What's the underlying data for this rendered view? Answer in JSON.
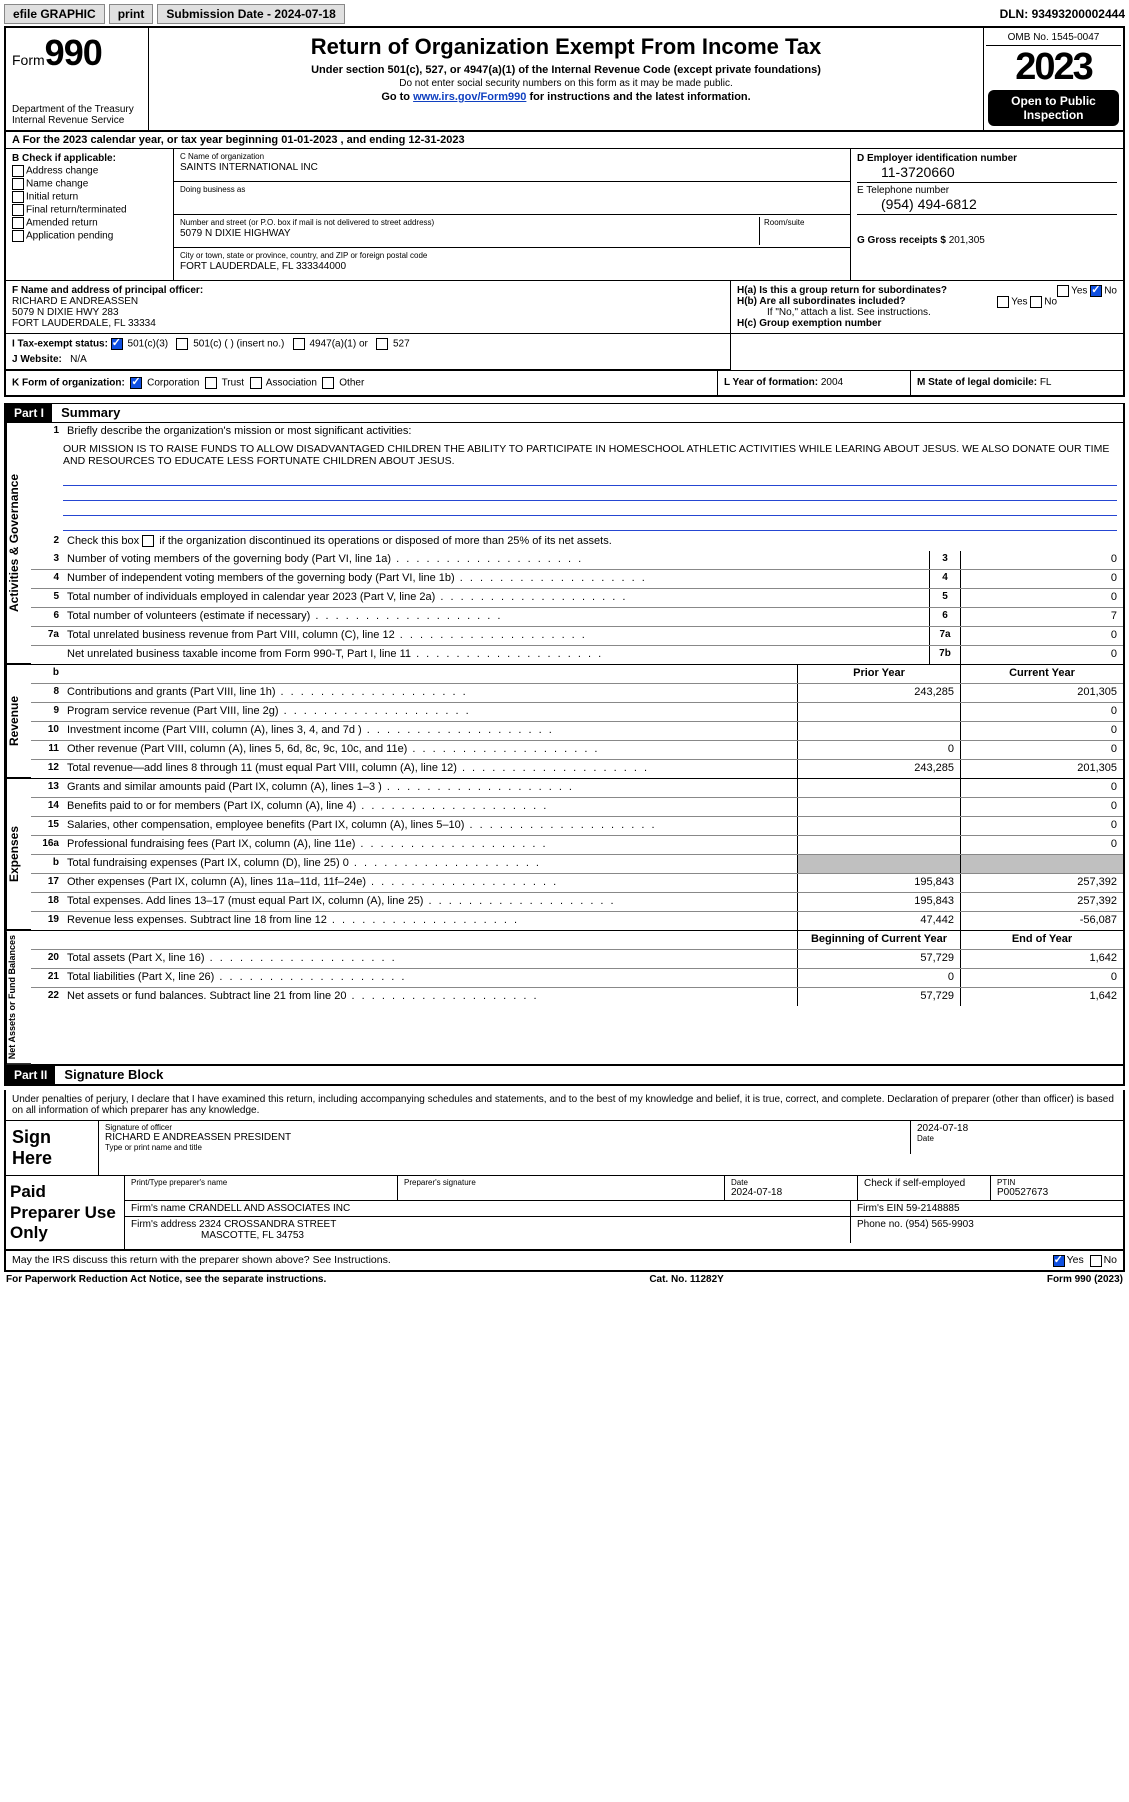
{
  "topbar": {
    "efile": "efile GRAPHIC",
    "print": "print",
    "subdate_label": "Submission Date - ",
    "subdate": "2024-07-18",
    "dln_label": "DLN: ",
    "dln": "93493200002444"
  },
  "header": {
    "form_prefix": "Form",
    "form_number": "990",
    "dept": "Department of the Treasury",
    "irs": "Internal Revenue Service",
    "title": "Return of Organization Exempt From Income Tax",
    "sub1": "Under section 501(c), 527, or 4947(a)(1) of the Internal Revenue Code (except private foundations)",
    "sub2": "Do not enter social security numbers on this form as it may be made public.",
    "sub3_prefix": "Go to ",
    "sub3_link": "www.irs.gov/Form990",
    "sub3_suffix": " for instructions and the latest information.",
    "omb": "OMB No. 1545-0047",
    "year": "2023",
    "open": "Open to Public Inspection"
  },
  "rowA": {
    "text_prefix": "A For the 2023 calendar year, or tax year beginning ",
    "begin": "01-01-2023",
    "mid": " , and ending ",
    "end": "12-31-2023"
  },
  "colB": {
    "hdr": "B Check if applicable:",
    "items": [
      "Address change",
      "Name change",
      "Initial return",
      "Final return/terminated",
      "Amended return",
      "Application pending"
    ]
  },
  "colC": {
    "name_lbl": "C Name of organization",
    "name": "SAINTS INTERNATIONAL INC",
    "dba_lbl": "Doing business as",
    "dba": "",
    "addr_lbl": "Number and street (or P.O. box if mail is not delivered to street address)",
    "room_lbl": "Room/suite",
    "addr": "5079 N DIXIE HIGHWAY",
    "city_lbl": "City or town, state or province, country, and ZIP or foreign postal code",
    "city": "FORT LAUDERDALE, FL  333344000"
  },
  "colD": {
    "ein_lbl": "D Employer identification number",
    "ein": "11-3720660",
    "tel_lbl": "E Telephone number",
    "tel": "(954) 494-6812",
    "gross_lbl": "G Gross receipts $",
    "gross": "201,305"
  },
  "rowF": {
    "f_lbl": "F Name and address of principal officer:",
    "f_name": "RICHARD E ANDREASSEN",
    "f_addr1": "5079 N DIXIE HWY 283",
    "f_addr2": "FORT LAUDERDALE, FL  33334",
    "ha": "H(a)  Is this a group return for subordinates?",
    "hb": "H(b)  Are all subordinates included?",
    "hb_note": "If \"No,\" attach a list. See instructions.",
    "hc": "H(c)  Group exemption number ",
    "yes": "Yes",
    "no": "No"
  },
  "rowI": {
    "lbl": "I    Tax-exempt status:",
    "opt1": "501(c)(3)",
    "opt2": "501(c) (  ) (insert no.)",
    "opt3": "4947(a)(1) or",
    "opt4": "527"
  },
  "rowJ": {
    "lbl": "J   Website: ",
    "val": "N/A"
  },
  "rowK": {
    "k_lbl": "K Form of organization:",
    "k_opts": [
      "Corporation",
      "Trust",
      "Association",
      "Other"
    ],
    "l_lbl": "L Year of formation: ",
    "l_val": "2004",
    "m_lbl": "M State of legal domicile: ",
    "m_val": "FL"
  },
  "part1": {
    "hdr": "Part I",
    "title": "Summary",
    "q1": "Briefly describe the organization's mission or most significant activities:",
    "mission": "OUR MISSION IS TO RAISE FUNDS TO ALLOW DISADVANTAGED CHILDREN THE ABILITY TO PARTICIPATE IN HOMESCHOOL ATHLETIC ACTIVITIES WHILE LEARING ABOUT JESUS. WE ALSO DONATE OUR TIME AND RESOURCES TO EDUCATE LESS FORTUNATE CHILDREN ABOUT JESUS.",
    "q2": "Check this box      if the organization discontinued its operations or disposed of more than 25% of its net assets.",
    "lines_gov": [
      {
        "n": "3",
        "d": "Number of voting members of the governing body (Part VI, line 1a)",
        "b": "3",
        "v": "0"
      },
      {
        "n": "4",
        "d": "Number of independent voting members of the governing body (Part VI, line 1b)",
        "b": "4",
        "v": "0"
      },
      {
        "n": "5",
        "d": "Total number of individuals employed in calendar year 2023 (Part V, line 2a)",
        "b": "5",
        "v": "0"
      },
      {
        "n": "6",
        "d": "Total number of volunteers (estimate if necessary)",
        "b": "6",
        "v": "7"
      },
      {
        "n": "7a",
        "d": "Total unrelated business revenue from Part VIII, column (C), line 12",
        "b": "7a",
        "v": "0"
      },
      {
        "n": "",
        "d": "Net unrelated business taxable income from Form 990-T, Part I, line 11",
        "b": "7b",
        "v": "0"
      }
    ],
    "col_prior": "Prior Year",
    "col_curr": "Current Year",
    "lines_rev": [
      {
        "n": "8",
        "d": "Contributions and grants (Part VIII, line 1h)",
        "p": "243,285",
        "c": "201,305"
      },
      {
        "n": "9",
        "d": "Program service revenue (Part VIII, line 2g)",
        "p": "",
        "c": "0"
      },
      {
        "n": "10",
        "d": "Investment income (Part VIII, column (A), lines 3, 4, and 7d )",
        "p": "",
        "c": "0"
      },
      {
        "n": "11",
        "d": "Other revenue (Part VIII, column (A), lines 5, 6d, 8c, 9c, 10c, and 11e)",
        "p": "0",
        "c": "0"
      },
      {
        "n": "12",
        "d": "Total revenue—add lines 8 through 11 (must equal Part VIII, column (A), line 12)",
        "p": "243,285",
        "c": "201,305"
      }
    ],
    "lines_exp": [
      {
        "n": "13",
        "d": "Grants and similar amounts paid (Part IX, column (A), lines 1–3 )",
        "p": "",
        "c": "0"
      },
      {
        "n": "14",
        "d": "Benefits paid to or for members (Part IX, column (A), line 4)",
        "p": "",
        "c": "0"
      },
      {
        "n": "15",
        "d": "Salaries, other compensation, employee benefits (Part IX, column (A), lines 5–10)",
        "p": "",
        "c": "0"
      },
      {
        "n": "16a",
        "d": "Professional fundraising fees (Part IX, column (A), line 11e)",
        "p": "",
        "c": "0"
      },
      {
        "n": "b",
        "d": "Total fundraising expenses (Part IX, column (D), line 25) 0",
        "p": "SHADE",
        "c": "SHADE"
      },
      {
        "n": "17",
        "d": "Other expenses (Part IX, column (A), lines 11a–11d, 11f–24e)",
        "p": "195,843",
        "c": "257,392"
      },
      {
        "n": "18",
        "d": "Total expenses. Add lines 13–17 (must equal Part IX, column (A), line 25)",
        "p": "195,843",
        "c": "257,392"
      },
      {
        "n": "19",
        "d": "Revenue less expenses. Subtract line 18 from line 12",
        "p": "47,442",
        "c": "-56,087"
      }
    ],
    "col_begin": "Beginning of Current Year",
    "col_end": "End of Year",
    "lines_net": [
      {
        "n": "20",
        "d": "Total assets (Part X, line 16)",
        "p": "57,729",
        "c": "1,642"
      },
      {
        "n": "21",
        "d": "Total liabilities (Part X, line 26)",
        "p": "0",
        "c": "0"
      },
      {
        "n": "22",
        "d": "Net assets or fund balances. Subtract line 21 from line 20",
        "p": "57,729",
        "c": "1,642"
      }
    ],
    "vtab_gov": "Activities & Governance",
    "vtab_rev": "Revenue",
    "vtab_exp": "Expenses",
    "vtab_net": "Net Assets or Fund Balances"
  },
  "part2": {
    "hdr": "Part II",
    "title": "Signature Block",
    "intro": "Under penalties of perjury, I declare that I have examined this return, including accompanying schedules and statements, and to the best of my knowledge and belief, it is true, correct, and complete. Declaration of preparer (other than officer) is based on all information of which preparer has any knowledge.",
    "sign_here": "Sign Here",
    "sig_lbl": "Signature of officer",
    "sig_name": "RICHARD E ANDREASSEN  PRESIDENT",
    "sig_type_lbl": "Type or print name and title",
    "date_lbl": "Date",
    "date": "2024-07-18",
    "paid": "Paid Preparer Use Only",
    "prep_name_lbl": "Print/Type preparer's name",
    "prep_sig_lbl": "Preparer's signature",
    "prep_date": "2024-07-18",
    "check_self": "Check        if self-employed",
    "ptin_lbl": "PTIN",
    "ptin": "P00527673",
    "firm_name_lbl": "Firm's name   ",
    "firm_name": "CRANDELL AND ASSOCIATES INC",
    "firm_ein_lbl": "Firm's EIN  ",
    "firm_ein": "59-2148885",
    "firm_addr_lbl": "Firm's address ",
    "firm_addr1": "2324 CROSSANDRA STREET",
    "firm_addr2": "MASCOTTE, FL  34753",
    "phone_lbl": "Phone no. ",
    "phone": "(954) 565-9903",
    "discuss": "May the IRS discuss this return with the preparer shown above? See Instructions.",
    "yes": "Yes",
    "no": "No"
  },
  "footer": {
    "left": "For Paperwork Reduction Act Notice, see the separate instructions.",
    "mid": "Cat. No. 11282Y",
    "right": "Form 990 (2023)"
  }
}
